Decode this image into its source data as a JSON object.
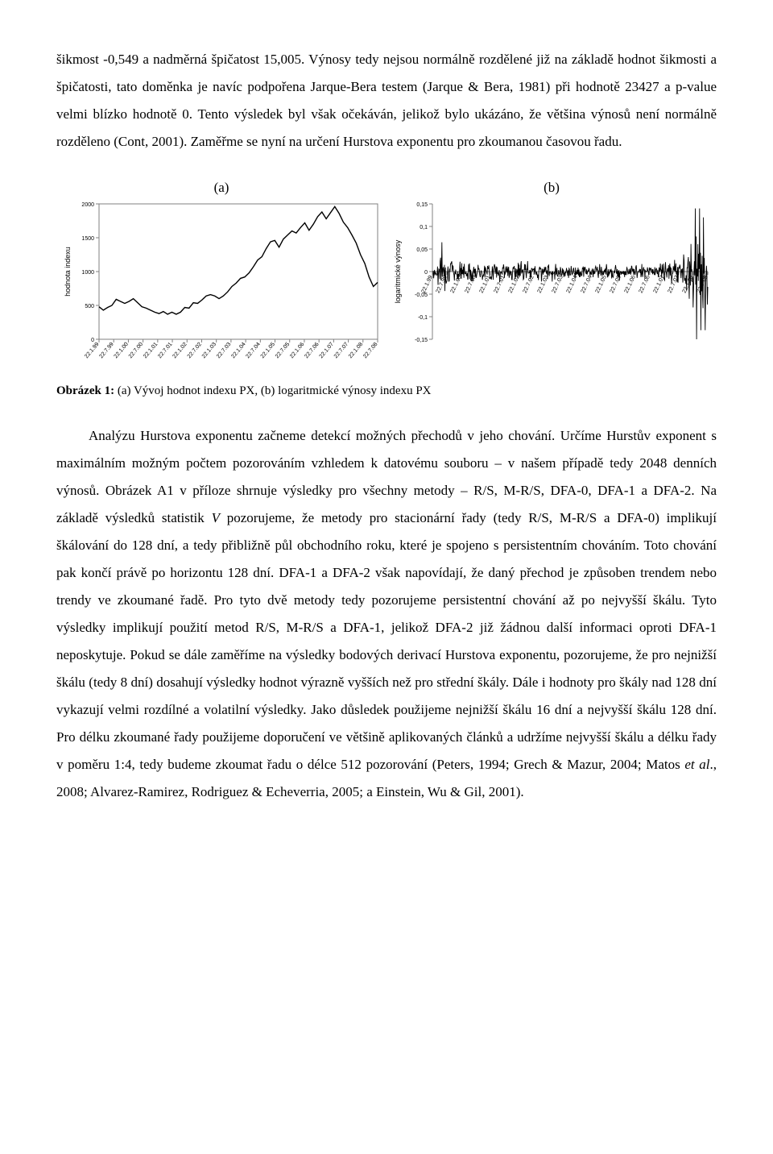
{
  "para1_parts": {
    "p0": "šikmost -0,549 a nadměrná špičatost 15,005. Výnosy tedy nejsou normálně rozdělené již na základě hodnot šikmosti a špičatosti, tato doměnka je navíc podpořena Jarque-Bera testem (Jarque & Bera, 1981) při hodnotě 23427 a p-value velmi blízko hodnotě 0. Tento výsledek byl však očekáván, jelikož bylo ukázáno, že většina výnosů není normálně rozděleno (Cont, 2001). Zaměřme se nyní na určení Hurstova exponentu pro zkoumanou časovou řadu."
  },
  "chart_labels": {
    "a": "(a)",
    "b": "(b)"
  },
  "caption": {
    "bold": "Obrázek 1:",
    "rest": " (a) Vývoj hodnot indexu PX, (b) logaritmické výnosy indexu PX"
  },
  "para2_parts": {
    "p0": "Analýzu Hurstova exponentu začneme detekcí možných přechodů v jeho chování. Určíme Hurstův exponent s maximálním možným počtem pozorováním vzhledem k datovému souboru – v našem případě tedy 2048 denních výnosů. Obrázek A1 v příloze shrnuje výsledky pro všechny metody – R/S, M-R/S, DFA-0, DFA-1 a DFA-2. Na základě výsledků statistik ",
    "italic1": "V",
    "p1": " pozorujeme, že metody pro stacionární řady (tedy R/S, M-R/S a DFA-0) implikují škálování do 128 dní, a tedy přibližně půl obchodního roku, které je spojeno s persistentním chováním. Toto chování pak končí právě po horizontu 128 dní. DFA-1 a DFA-2 však napovídají, že daný přechod je způsoben trendem nebo trendy ve zkoumané řadě. Pro tyto dvě metody tedy pozorujeme persistentní chování až po nejvyšší škálu. Tyto výsledky implikují použití metod R/S, M-R/S a DFA-1, jelikož DFA-2 již žádnou další informaci oproti DFA-1 neposkytuje. Pokud se dále zaměříme na výsledky bodových derivací Hurstova exponentu, pozorujeme, že pro nejnižší škálu (tedy 8 dní) dosahují výsledky hodnot výrazně vyšších než pro střední škály. Dále i hodnoty pro škály nad 128 dní vykazují velmi rozdílné a volatilní výsledky. Jako důsledek použijeme nejnižší škálu 16 dní a nejvyšší škálu 128 dní. Pro délku zkoumané řady použijeme doporučení ve většině aplikovaných článků a udržíme nejvyšší škálu a délku řady v poměru 1:4, tedy budeme zkoumat řadu o délce 512 pozorování (Peters, 1994; Grech & Mazur, 2004; Matos ",
    "italic2": "et al",
    "p2": "., 2008; Alvarez-Ramirez, Rodriguez & Echeverria, 2005; a Einstein, Wu & Gil, 2001)."
  },
  "chart_a": {
    "type": "line",
    "y_axis_title": "hodnota indexu",
    "ylim": [
      0,
      2000
    ],
    "ytick_step": 500,
    "yticks": [
      "0",
      "500",
      "1000",
      "1500",
      "2000"
    ],
    "xticks": [
      "22.1.99",
      "22.7.99",
      "22.1.00",
      "22.7.00",
      "22.1.01",
      "22.7.01",
      "22.1.02",
      "22.7.02",
      "22.1.03",
      "22.7.03",
      "22.1.04",
      "22.7.04",
      "22.1.05",
      "22.7.05",
      "22.1.06",
      "22.7.06",
      "22.1.07",
      "22.7.07",
      "22.1.08",
      "22.7.08"
    ],
    "background_color": "#ffffff",
    "border_color": "#808080",
    "line_color": "#000000",
    "line_width": 1.4,
    "label_fontsize": 7,
    "axis_title_fontsize": 9,
    "series": [
      480,
      430,
      470,
      500,
      590,
      560,
      530,
      560,
      600,
      540,
      480,
      460,
      430,
      400,
      380,
      410,
      370,
      400,
      370,
      400,
      470,
      460,
      540,
      530,
      580,
      640,
      660,
      640,
      600,
      640,
      700,
      780,
      830,
      900,
      920,
      980,
      1070,
      1170,
      1220,
      1340,
      1440,
      1460,
      1360,
      1480,
      1540,
      1600,
      1570,
      1650,
      1720,
      1610,
      1700,
      1810,
      1880,
      1780,
      1870,
      1960,
      1860,
      1730,
      1650,
      1540,
      1420,
      1250,
      1120,
      920,
      780,
      840
    ]
  },
  "chart_b": {
    "type": "line-noise",
    "y_axis_title": "logaritmické výnosy",
    "ylim": [
      -0.15,
      0.15
    ],
    "ytick_step": 0.05,
    "yticks": [
      "-0,15",
      "-0,1",
      "-0,05",
      "0",
      "0,05",
      "0,1",
      "0,15"
    ],
    "xticks": [
      "22.1.99",
      "22.7.99",
      "22.1.00",
      "22.7.00",
      "22.1.01",
      "22.7.01",
      "22.1.02",
      "22.7.02",
      "22.1.03",
      "22.7.03",
      "22.1.04",
      "22.7.04",
      "22.1.05",
      "22.7.05",
      "22.1.06",
      "22.7.06",
      "22.1.07",
      "22.7.07",
      "22.1.08",
      "22.7.08"
    ],
    "background_color": "#ffffff",
    "border_color": "#808080",
    "line_color": "#000000",
    "line_width": 0.9,
    "label_fontsize": 7,
    "axis_title_fontsize": 9,
    "amplitude_profile": [
      0.028,
      0.025,
      0.018,
      0.016,
      0.016,
      0.02,
      0.018,
      0.015,
      0.013,
      0.012,
      0.012,
      0.013,
      0.012,
      0.012,
      0.013,
      0.015,
      0.02,
      0.03,
      0.055,
      0.07
    ],
    "n_points": 640,
    "seed": 7,
    "spikes": [
      {
        "t": 0.035,
        "v": 0.065
      },
      {
        "t": 0.955,
        "v": 0.14
      },
      {
        "t": 0.96,
        "v": -0.15
      },
      {
        "t": 0.97,
        "v": 0.14
      },
      {
        "t": 0.975,
        "v": -0.13
      },
      {
        "t": 0.985,
        "v": 0.12
      },
      {
        "t": 0.99,
        "v": -0.13
      }
    ]
  }
}
